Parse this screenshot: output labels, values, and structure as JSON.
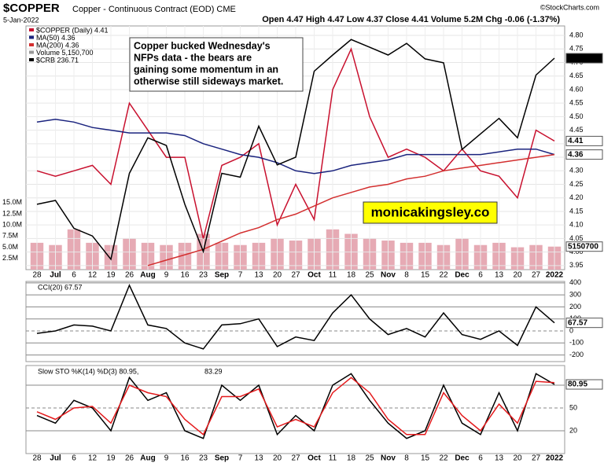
{
  "header": {
    "symbol": "$COPPER",
    "name": "Copper - Continuous Contract (EOD) CME",
    "date": "5-Jan-2022",
    "source": "©StockCharts.com",
    "quote": "Open 4.47 High 4.47 Low 4.37 Close 4.41 Volume 5.2M Chg -0.06 (-1.37%)"
  },
  "annotation": [
    "Copper bucked Wednesday's",
    "NFPs data - the bears are",
    "gaining some momentum in an",
    "otherwise still sideways market."
  ],
  "watermark": "monicakingsley.co",
  "chart_data": [
    {
      "type": "line",
      "categories": [
        "28",
        "Jul",
        "6",
        "12",
        "19",
        "26",
        "Aug",
        "9",
        "16",
        "23",
        "Sep",
        "7",
        "13",
        "20",
        "27",
        "Oct",
        "11",
        "18",
        "25",
        "Nov",
        "8",
        "15",
        "22",
        "Dec",
        "6",
        "13",
        "20",
        "27",
        "2022"
      ],
      "legend": [
        "$COPPER (Daily) 4.41",
        "MA(50) 4.36",
        "MA(200) 4.36",
        "Volume 5,150,700",
        "$CRB 236.71"
      ],
      "ylim": [
        3.935,
        4.835
      ],
      "yticks": [
        {
          "value": 3.95,
          "label": "3.95"
        },
        {
          "value": 4.0,
          "label": "4.00"
        },
        {
          "value": 4.05,
          "label": "4.05"
        },
        {
          "value": 4.1,
          "label": "4.10"
        },
        {
          "value": 4.15,
          "label": "4.15"
        },
        {
          "value": 4.2,
          "label": "4.20"
        },
        {
          "value": 4.25,
          "label": "4.25"
        },
        {
          "value": 4.3,
          "label": "4.30"
        },
        {
          "value": 4.35,
          "label": "4.35"
        },
        {
          "value": 4.4,
          "label": "4.40"
        },
        {
          "value": 4.45,
          "label": "4.45"
        },
        {
          "value": 4.5,
          "label": "4.50"
        },
        {
          "value": 4.55,
          "label": "4.55"
        },
        {
          "value": 4.6,
          "label": "4.60"
        },
        {
          "value": 4.65,
          "label": "4.65"
        },
        {
          "value": 4.7,
          "label": "4.70"
        },
        {
          "value": 4.75,
          "label": "4.75"
        },
        {
          "value": 4.8,
          "label": "4.80"
        }
      ],
      "y2lim": [
        204,
        241.7
      ],
      "series": [
        {
          "name": "$COPPER",
          "color": "#c8102e",
          "last_label": "4.41",
          "values": [
            4.3,
            4.28,
            4.3,
            4.32,
            4.25,
            4.55,
            4.45,
            4.35,
            4.35,
            4.05,
            4.32,
            4.35,
            4.4,
            4.1,
            4.25,
            4.12,
            4.6,
            4.75,
            4.5,
            4.35,
            4.38,
            4.35,
            4.3,
            4.38,
            4.3,
            4.28,
            4.2,
            4.45,
            4.41
          ]
        },
        {
          "name": "MA(50)",
          "color": "#1a237e",
          "last_label": "4.36",
          "values": [
            4.48,
            4.49,
            4.48,
            4.46,
            4.45,
            4.44,
            4.44,
            4.44,
            4.43,
            4.4,
            4.38,
            4.36,
            4.35,
            4.33,
            4.3,
            4.29,
            4.3,
            4.32,
            4.33,
            4.34,
            4.36,
            4.36,
            4.36,
            4.36,
            4.36,
            4.37,
            4.38,
            4.38,
            4.36
          ]
        },
        {
          "name": "MA(200)",
          "color": "#d32f2f",
          "values": [
            null,
            null,
            null,
            null,
            null,
            null,
            3.95,
            3.97,
            3.99,
            4.01,
            4.04,
            4.07,
            4.09,
            4.12,
            4.14,
            4.17,
            4.2,
            4.22,
            4.24,
            4.25,
            4.27,
            4.28,
            4.3,
            4.31,
            4.32,
            4.33,
            4.34,
            4.35,
            4.36
          ]
        },
        {
          "name": "$CRB",
          "color": "#000000",
          "axis": "y2",
          "last_label": "236.71",
          "values": [
            214.1,
            214.7,
            210.4,
            209.2,
            205.6,
            218.9,
            224.4,
            223.2,
            214.1,
            206.8,
            218.9,
            218.3,
            226.2,
            220.2,
            221.4,
            234.7,
            237.2,
            239.6,
            238.4,
            237.2,
            239,
            236.6,
            236,
            222.6,
            225,
            227.4,
            224.4,
            234.1,
            236.71
          ]
        }
      ],
      "volume": {
        "color": "#e6aab4",
        "ylim": [
          0,
          54.5
        ],
        "last_label": "5150700",
        "yticks": [
          {
            "value": 2.5,
            "label": "2.5M"
          },
          {
            "value": 5,
            "label": "5.0M"
          },
          {
            "value": 7.5,
            "label": "7.5M"
          },
          {
            "value": 10,
            "label": "10.0M"
          },
          {
            "value": 12.5,
            "label": "12.5M"
          },
          {
            "value": 15,
            "label": "15.0M"
          }
        ],
        "values": [
          6,
          5.5,
          9,
          6,
          5.5,
          7,
          6,
          5.5,
          6,
          8,
          6,
          5.5,
          6,
          7,
          6.5,
          7,
          9,
          8,
          7,
          6.5,
          6,
          6,
          5.5,
          7,
          5.5,
          6,
          5,
          5.5,
          5.1507
        ]
      }
    },
    {
      "type": "line",
      "legend": "CCI(20) 67.57",
      "ylim": [
        -255,
        412
      ],
      "yticks": [
        -200,
        -100,
        0,
        100,
        200,
        300,
        400
      ],
      "series": [
        {
          "name": "CCI(20)",
          "color": "#000000",
          "last_label": "67.57",
          "values": [
            -20,
            0,
            50,
            40,
            0,
            380,
            50,
            20,
            -100,
            -150,
            50,
            60,
            100,
            -130,
            -50,
            -80,
            150,
            300,
            100,
            -30,
            20,
            -50,
            150,
            -30,
            -70,
            0,
            -120,
            200,
            67.57
          ]
        }
      ]
    },
    {
      "type": "line",
      "legend": [
        "Slow STO %K(14) %D(3) 80.95, ",
        "83.29"
      ],
      "ylim": [
        -10,
        105.8
      ],
      "yticks": [
        20,
        50,
        80
      ],
      "series": [
        {
          "name": "%K(14)",
          "color": "#000000",
          "last_label": "80.95",
          "values": [
            40,
            30,
            60,
            50,
            20,
            90,
            60,
            70,
            20,
            10,
            80,
            60,
            80,
            15,
            40,
            20,
            80,
            95,
            60,
            30,
            10,
            20,
            80,
            30,
            15,
            70,
            20,
            95,
            80.95
          ]
        },
        {
          "name": "%D(3)",
          "color": "#e41a1c",
          "values": [
            45,
            35,
            50,
            52,
            30,
            80,
            70,
            65,
            35,
            15,
            65,
            65,
            75,
            25,
            35,
            25,
            70,
            90,
            70,
            35,
            15,
            15,
            70,
            40,
            20,
            55,
            30,
            85,
            83.29
          ]
        }
      ]
    }
  ]
}
